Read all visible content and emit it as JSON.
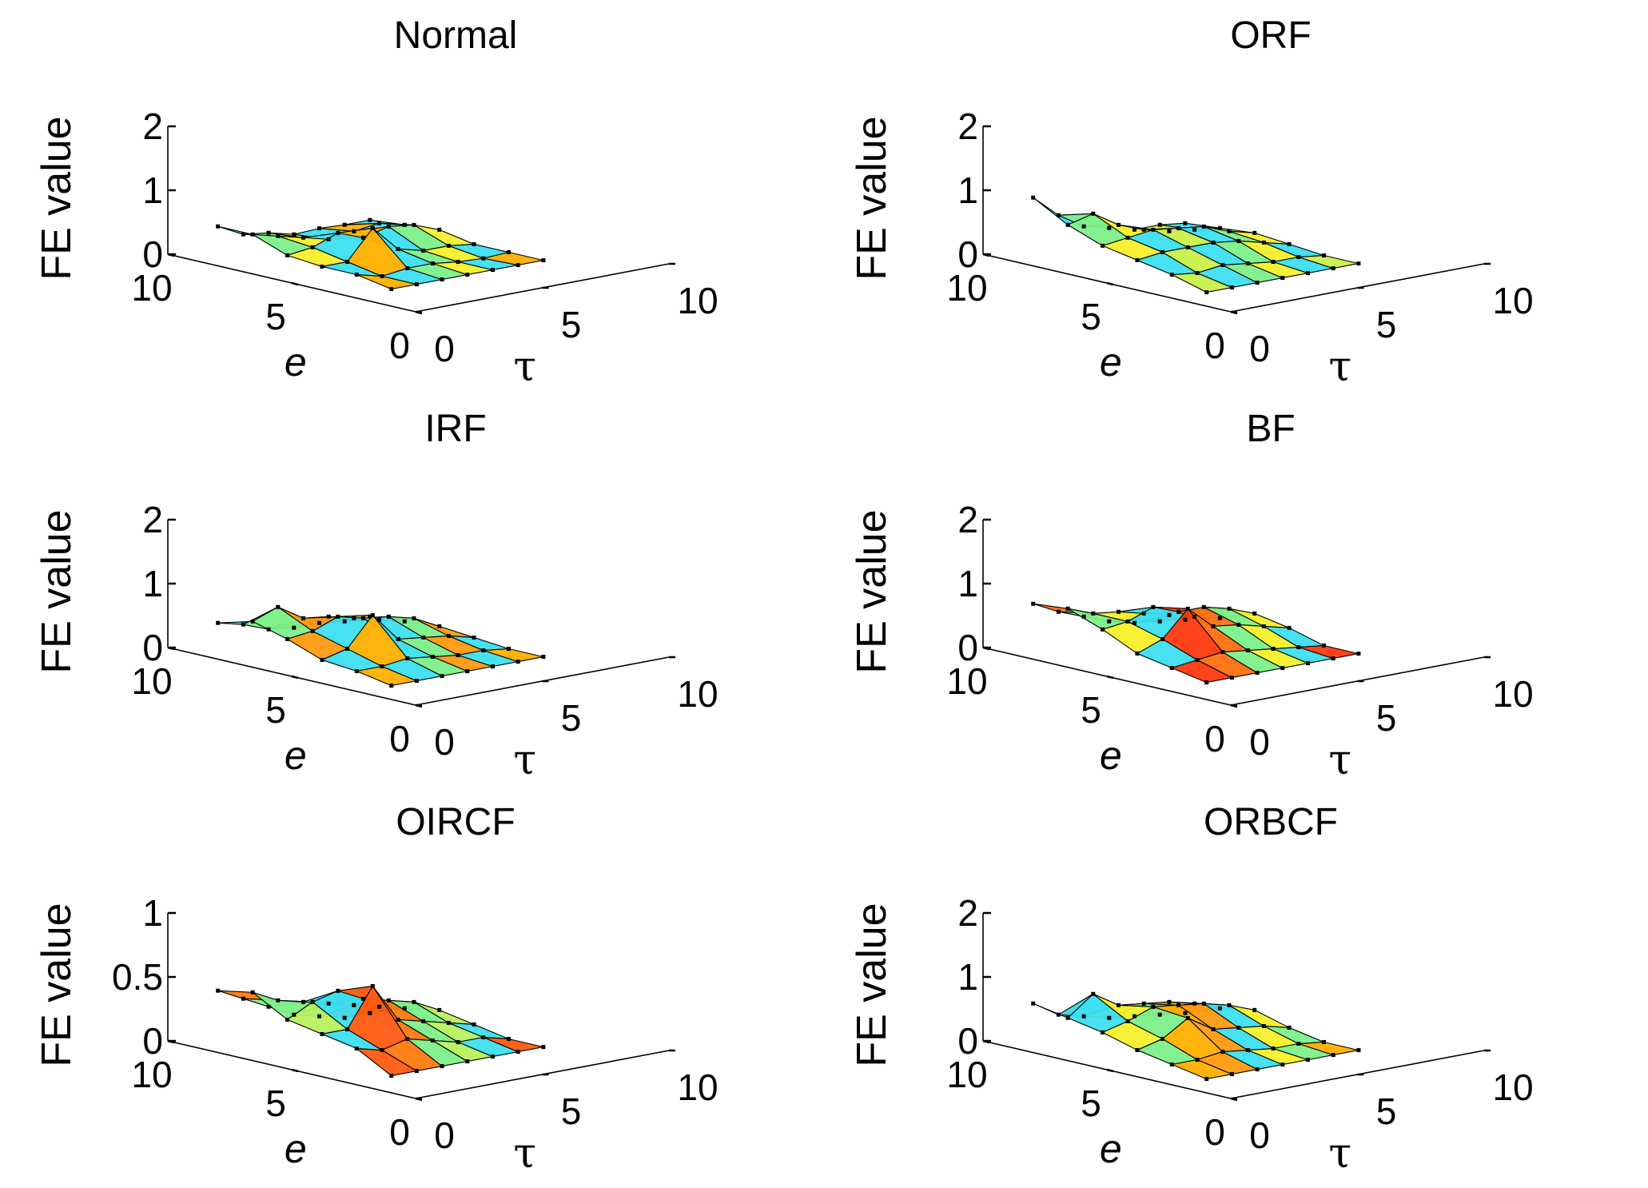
{
  "figure": {
    "shared": {
      "zlabel": "FE value",
      "xlabel": "e",
      "ylabel": "τ",
      "e_ticks": [
        "10",
        "5",
        "0"
      ],
      "tau_ticks": [
        "0",
        "5",
        "10"
      ]
    }
  },
  "chart_data": [
    {
      "type": "surface3d",
      "title": "Normal",
      "xlabel": "e",
      "ylabel": "τ",
      "zlabel": "FE value",
      "zlim": [
        0,
        2
      ],
      "z_ticks": [
        "0",
        "1",
        "2"
      ],
      "xlim": [
        0,
        10
      ],
      "ylim": [
        0,
        10
      ],
      "z_grid": [
        [
          0.45,
          0.25,
          0.2,
          0.1,
          0.12,
          0.1,
          0.1
        ],
        [
          0.45,
          0.35,
          0.25,
          0.15,
          0.2,
          0.25,
          0.15
        ],
        [
          0.25,
          0.3,
          0.45,
          0.3,
          0.4,
          0.35,
          0.2
        ],
        [
          0.2,
          0.2,
          0.65,
          0.25,
          0.15,
          0.15,
          0.1
        ],
        [
          0.2,
          0.1,
          0.15,
          0.15,
          0.1,
          0.08,
          0.1
        ],
        [
          0.1,
          0.1,
          0.1,
          0.1,
          0.1,
          0.1,
          0.1
        ]
      ],
      "colors": [
        "#3ddff0",
        "#7df08a",
        "#f5f02a",
        "#3ddff0",
        "#ffb000"
      ]
    },
    {
      "type": "surface3d",
      "title": "ORF",
      "xlabel": "e",
      "ylabel": "τ",
      "zlabel": "FE value",
      "zlim": [
        0,
        2
      ],
      "z_ticks": [
        "0",
        "1",
        "2"
      ],
      "xlim": [
        0,
        10
      ],
      "ylim": [
        0,
        10
      ],
      "z_grid": [
        [
          0.9,
          0.55,
          0.3,
          0.2,
          0.1,
          0.1,
          0.05
        ],
        [
          0.6,
          0.7,
          0.45,
          0.3,
          0.2,
          0.15,
          0.1
        ],
        [
          0.4,
          0.45,
          0.5,
          0.45,
          0.4,
          0.25,
          0.15
        ],
        [
          0.3,
          0.35,
          0.35,
          0.35,
          0.3,
          0.2,
          0.1
        ],
        [
          0.2,
          0.15,
          0.2,
          0.15,
          0.1,
          0.1,
          0.05
        ],
        [
          0.05,
          0.05,
          0.05,
          0.05,
          0.05,
          0.05,
          0.05
        ]
      ],
      "colors": [
        "#3ddff0",
        "#7df08a",
        "#f5f02a",
        "#3ddff0",
        "#c8f04a"
      ]
    },
    {
      "type": "surface3d",
      "title": "IRF",
      "xlabel": "e",
      "ylabel": "τ",
      "zlabel": "FE value",
      "zlim": [
        0,
        2
      ],
      "z_ticks": [
        "0",
        "1",
        "2"
      ],
      "xlim": [
        0,
        10
      ],
      "ylim": [
        0,
        10
      ],
      "z_grid": [
        [
          0.4,
          0.3,
          0.15,
          0.1,
          0.1,
          0.05,
          0.05
        ],
        [
          0.55,
          0.7,
          0.45,
          0.4,
          0.3,
          0.2,
          0.1
        ],
        [
          0.4,
          0.45,
          0.6,
          0.5,
          0.45,
          0.35,
          0.15
        ],
        [
          0.2,
          0.3,
          0.75,
          0.3,
          0.25,
          0.2,
          0.1
        ],
        [
          0.15,
          0.15,
          0.2,
          0.15,
          0.1,
          0.1,
          0.05
        ],
        [
          0.05,
          0.05,
          0.05,
          0.05,
          0.05,
          0.05,
          0.05
        ]
      ],
      "colors": [
        "#3ddff0",
        "#7df08a",
        "#ff9a10",
        "#3ddff0",
        "#ffb000"
      ]
    },
    {
      "type": "surface3d",
      "title": "BF",
      "xlabel": "e",
      "ylabel": "τ",
      "zlabel": "FE value",
      "zlim": [
        0,
        2
      ],
      "z_ticks": [
        "0",
        "1",
        "2"
      ],
      "xlim": [
        0,
        10
      ],
      "ylim": [
        0,
        10
      ],
      "z_grid": [
        [
          0.7,
          0.5,
          0.35,
          0.2,
          0.1,
          0.05,
          0.0
        ],
        [
          0.75,
          0.6,
          0.55,
          0.45,
          0.35,
          0.25,
          0.15
        ],
        [
          0.55,
          0.6,
          0.75,
          0.6,
          0.6,
          0.5,
          0.35
        ],
        [
          0.3,
          0.45,
          0.85,
          0.5,
          0.45,
          0.35,
          0.25
        ],
        [
          0.2,
          0.25,
          0.3,
          0.25,
          0.2,
          0.15,
          0.1
        ],
        [
          0.1,
          0.1,
          0.1,
          0.1,
          0.1,
          0.1,
          0.1
        ]
      ],
      "colors": [
        "#ff7010",
        "#7df08a",
        "#f5f02a",
        "#3ddff0",
        "#ff3a10"
      ]
    },
    {
      "type": "surface3d",
      "title": "OIRCF",
      "xlabel": "e",
      "ylabel": "τ",
      "zlabel": "FE value",
      "zlim": [
        0,
        1
      ],
      "z_ticks": [
        "0",
        "0.5",
        "1"
      ],
      "xlim": [
        0,
        10
      ],
      "ylim": [
        0,
        10
      ],
      "z_grid": [
        [
          0.4,
          0.3,
          0.2,
          0.1,
          0.05,
          0.0,
          0.0
        ],
        [
          0.45,
          0.35,
          0.3,
          0.25,
          0.2,
          0.15,
          0.1
        ],
        [
          0.3,
          0.4,
          0.45,
          0.35,
          0.3,
          0.25,
          0.15
        ],
        [
          0.25,
          0.25,
          0.55,
          0.25,
          0.2,
          0.15,
          0.1
        ],
        [
          0.2,
          0.15,
          0.2,
          0.15,
          0.1,
          0.1,
          0.05
        ],
        [
          0.05,
          0.05,
          0.05,
          0.05,
          0.05,
          0.05,
          0.05
        ]
      ],
      "colors": [
        "#ff7a10",
        "#7df08a",
        "#b8f060",
        "#3ddff0",
        "#ff5a10"
      ]
    },
    {
      "type": "surface3d",
      "title": "ORBCF",
      "xlabel": "e",
      "ylabel": "τ",
      "zlabel": "FE value",
      "zlim": [
        0,
        2
      ],
      "z_ticks": [
        "0",
        "1",
        "2"
      ],
      "xlim": [
        0,
        10
      ],
      "ylim": [
        0,
        10
      ],
      "z_grid": [
        [
          0.6,
          0.35,
          0.25,
          0.15,
          0.1,
          0.05,
          0.0
        ],
        [
          0.5,
          0.8,
          0.55,
          0.5,
          0.45,
          0.35,
          0.2
        ],
        [
          0.4,
          0.5,
          0.65,
          0.6,
          0.55,
          0.45,
          0.3
        ],
        [
          0.25,
          0.35,
          0.6,
          0.35,
          0.3,
          0.25,
          0.15
        ],
        [
          0.15,
          0.15,
          0.2,
          0.15,
          0.1,
          0.1,
          0.05
        ],
        [
          0.05,
          0.05,
          0.05,
          0.05,
          0.05,
          0.05,
          0.05
        ]
      ],
      "colors": [
        "#ff9a10",
        "#3ddff0",
        "#f5f02a",
        "#7df08a",
        "#ffb000"
      ]
    }
  ]
}
